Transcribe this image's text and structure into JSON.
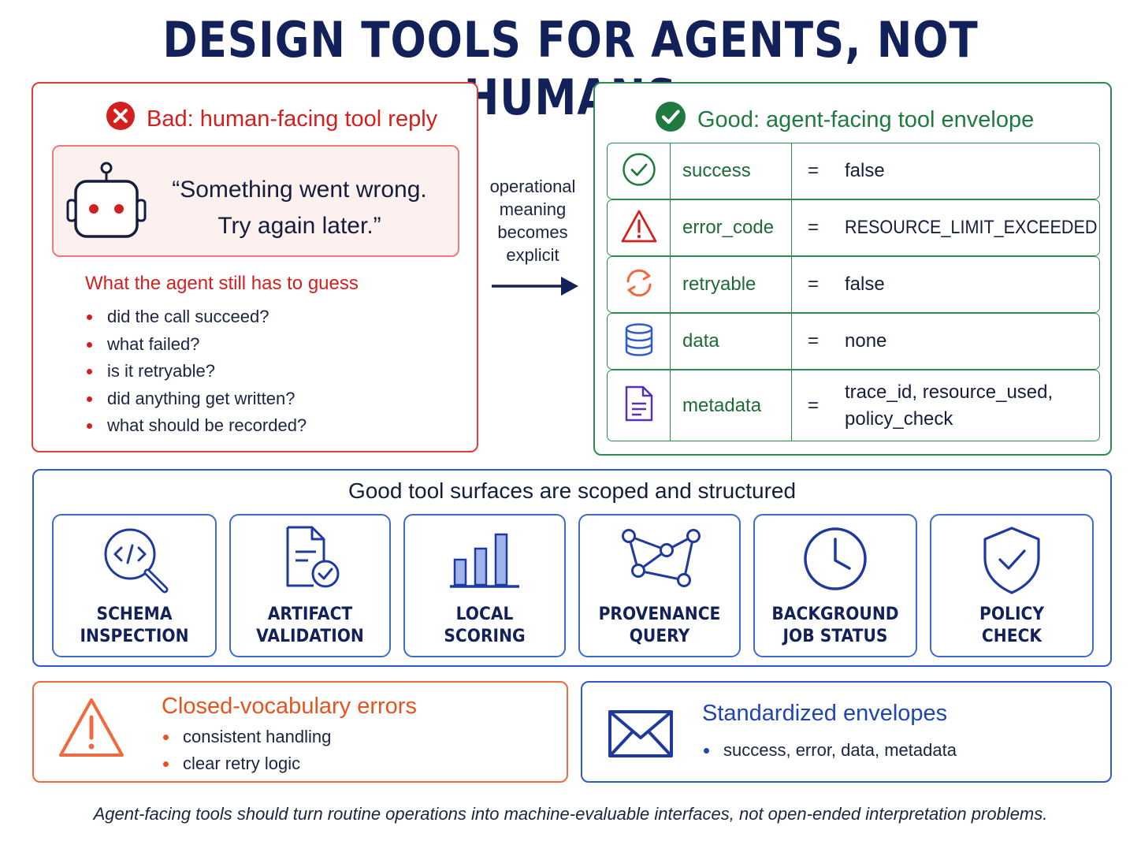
{
  "title": "DESIGN TOOLS FOR AGENTS, NOT HUMANS",
  "bad_panel": {
    "heading": "Bad: human-facing tool reply",
    "quote_line1": "“Something went wrong.",
    "quote_line2": "Try again later.”",
    "guess_heading": "What the agent still has to guess",
    "guesses": [
      "did the call succeed?",
      "what failed?",
      "is it retryable?",
      "did anything get written?",
      "what should be recorded?"
    ]
  },
  "arrow_label": {
    "line1": "operational",
    "line2": "meaning",
    "line3": "becomes",
    "line4": "explicit"
  },
  "good_panel": {
    "heading": "Good: agent-facing tool envelope",
    "rows": [
      {
        "icon": "check-circle-icon",
        "key": "success",
        "eq": "=",
        "value": "false"
      },
      {
        "icon": "warning-icon",
        "key": "error_code",
        "eq": "=",
        "value": "RESOURCE_LIMIT_EXCEEDED"
      },
      {
        "icon": "retry-icon",
        "key": "retryable",
        "eq": "=",
        "value": "false"
      },
      {
        "icon": "database-icon",
        "key": "data",
        "eq": "=",
        "value": "none"
      },
      {
        "icon": "document-icon",
        "key": "metadata",
        "eq": "=",
        "value_line1": "trace_id, resource_used,",
        "value_line2": "policy_check"
      }
    ]
  },
  "surfaces": {
    "heading": "Good tool surfaces are scoped and structured",
    "cards": [
      {
        "icon": "code-search-icon",
        "line1": "SCHEMA",
        "line2": "INSPECTION"
      },
      {
        "icon": "document-check-icon",
        "line1": "ARTIFACT",
        "line2": "VALIDATION"
      },
      {
        "icon": "bar-chart-icon",
        "line1": "LOCAL",
        "line2": "SCORING"
      },
      {
        "icon": "graph-network-icon",
        "line1": "PROVENANCE",
        "line2": "QUERY"
      },
      {
        "icon": "clock-icon",
        "line1": "BACKGROUND",
        "line2": "JOB STATUS"
      },
      {
        "icon": "shield-check-icon",
        "line1": "POLICY",
        "line2": "CHECK"
      }
    ]
  },
  "closed_vocab": {
    "heading": "Closed-vocabulary errors",
    "items": [
      "consistent handling",
      "clear retry logic"
    ]
  },
  "standard_env": {
    "heading": "Standardized envelopes",
    "items": [
      "success, error, data, metadata"
    ]
  },
  "footer": "Agent-facing tools should turn routine operations into machine-evaluable interfaces, not open-ended interpretation problems.",
  "colors": {
    "navy": "#13215a",
    "bad_red": "#d41f1f",
    "good_green": "#1e7a3e",
    "blue": "#2f5bd0",
    "orange": "#e4541f"
  }
}
